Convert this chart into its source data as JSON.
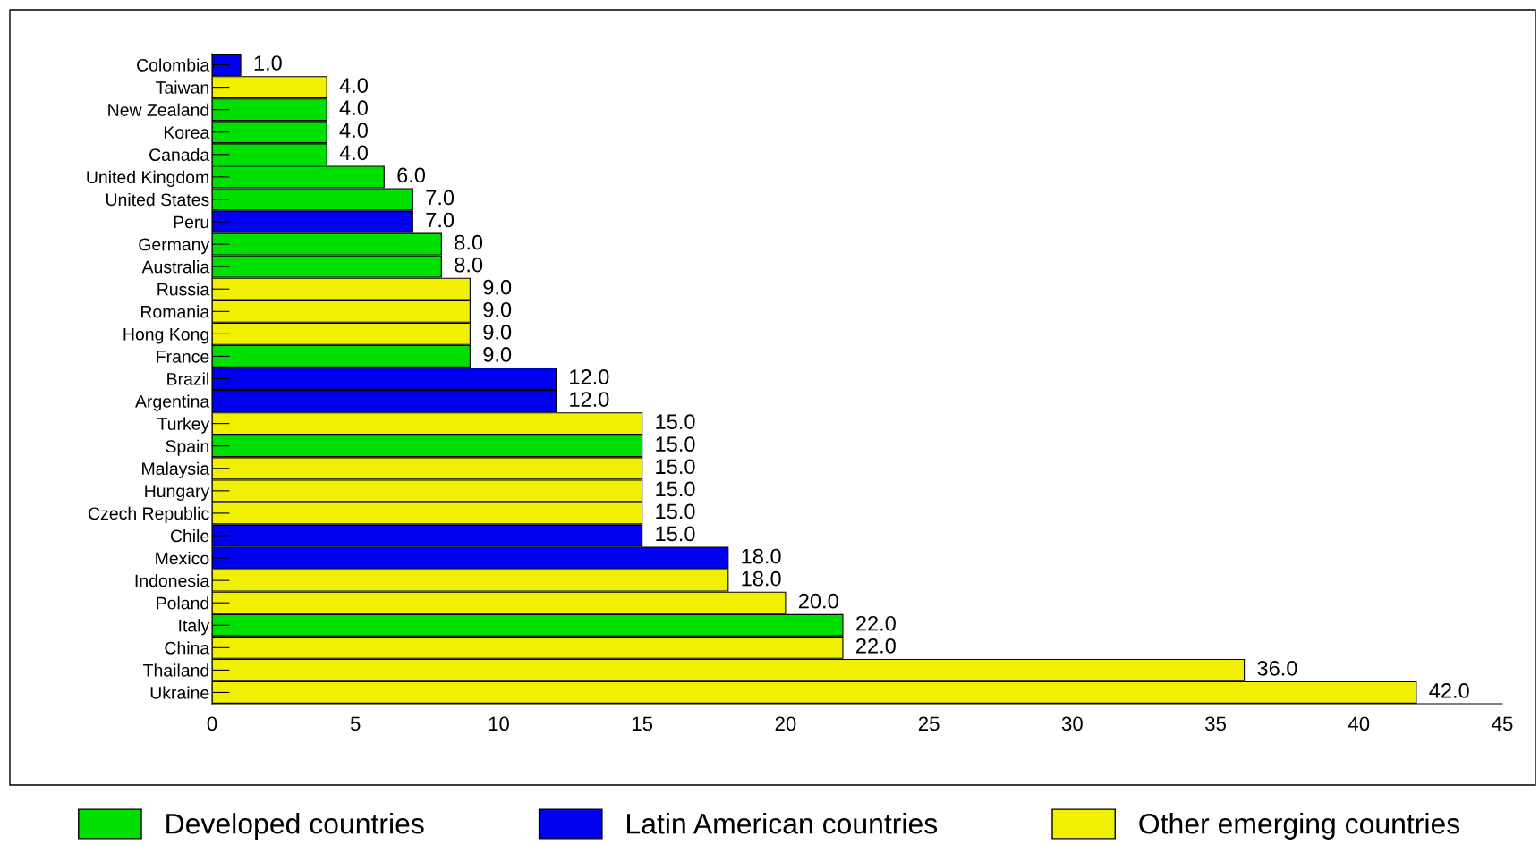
{
  "chart_data": {
    "type": "bar",
    "orientation": "horizontal",
    "categories": [
      "Colombia",
      "Taiwan",
      "New Zealand",
      "Korea",
      "Canada",
      "United Kingdom",
      "United States",
      "Peru",
      "Germany",
      "Australia",
      "Russia",
      "Romania",
      "Hong Kong",
      "France",
      "Brazil",
      "Argentina",
      "Turkey",
      "Spain",
      "Malaysia",
      "Hungary",
      "Czech Republic",
      "Chile",
      "Mexico",
      "Indonesia",
      "Poland",
      "Italy",
      "China",
      "Thailand",
      "Ukraine"
    ],
    "series": [
      {
        "name": "Developed countries",
        "color": "#00e000",
        "values": [
          null,
          null,
          4,
          4,
          4,
          6,
          7,
          null,
          8,
          8,
          null,
          null,
          null,
          9,
          null,
          null,
          null,
          15,
          null,
          null,
          null,
          null,
          null,
          null,
          null,
          22,
          null,
          null,
          null
        ],
        "value_labels": [
          null,
          null,
          "4.0",
          "4.0",
          "4.0",
          "6.0",
          "7.0",
          null,
          "8.0",
          "8.0",
          null,
          null,
          null,
          "9.0",
          null,
          null,
          null,
          "15.0",
          null,
          null,
          null,
          null,
          null,
          null,
          null,
          "22.0",
          null,
          null,
          null
        ]
      },
      {
        "name": "Latin American countries",
        "color": "#0000f0",
        "values": [
          1,
          null,
          null,
          null,
          null,
          null,
          null,
          7,
          null,
          null,
          null,
          null,
          null,
          null,
          12,
          12,
          null,
          null,
          null,
          null,
          null,
          15,
          18,
          null,
          null,
          null,
          null,
          null,
          null
        ],
        "value_labels": [
          "1.0",
          null,
          null,
          null,
          null,
          null,
          null,
          "7.0",
          null,
          null,
          null,
          null,
          null,
          null,
          "12.0",
          "12.0",
          null,
          null,
          null,
          null,
          null,
          "15.0",
          "18.0",
          null,
          null,
          null,
          null,
          null,
          null
        ]
      },
      {
        "name": "Other emerging countries",
        "color": "#f0f000",
        "values": [
          null,
          4,
          null,
          null,
          null,
          null,
          null,
          null,
          null,
          null,
          9,
          9,
          9,
          null,
          null,
          null,
          15,
          null,
          15,
          15,
          15,
          null,
          null,
          18,
          20,
          null,
          22,
          36,
          42
        ],
        "value_labels": [
          null,
          "4.0",
          null,
          null,
          null,
          null,
          null,
          null,
          null,
          null,
          "9.0",
          "9.0",
          "9.0",
          null,
          null,
          null,
          "15.0",
          null,
          "15.0",
          "15.0",
          "15.0",
          null,
          null,
          "18.0",
          "20.0",
          null,
          "22.0",
          "36.0",
          "42.0"
        ]
      }
    ],
    "xlim": [
      0,
      45
    ],
    "xticks": [
      0,
      5,
      10,
      15,
      20,
      25,
      30,
      35,
      40,
      45
    ],
    "grid": false,
    "legend": "bottom"
  }
}
